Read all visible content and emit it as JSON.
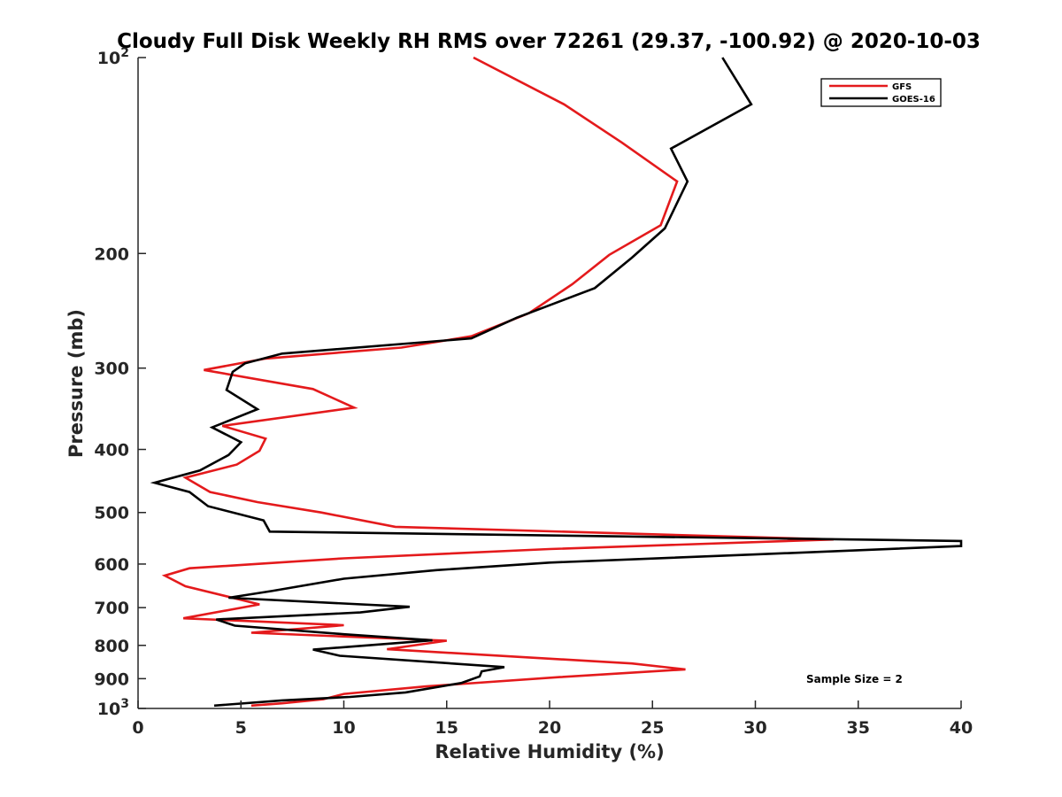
{
  "chart_data": {
    "type": "line",
    "title": "Cloudy Full Disk Weekly RH RMS over 72261 (29.37, -100.92) @ 2020-10-03",
    "xlabel": "Relative Humidity (%)",
    "ylabel": "Pressure (mb)",
    "xlim": [
      0,
      40
    ],
    "ylim": [
      100,
      1000
    ],
    "y_scale": "log",
    "y_reversed": true,
    "grid": false,
    "legend_position": "top-right",
    "x_ticks": [
      0,
      5,
      10,
      15,
      20,
      25,
      30,
      35,
      40
    ],
    "x_tick_labels": [
      "0",
      "5",
      "10",
      "15",
      "20",
      "25",
      "30",
      "35",
      "40"
    ],
    "y_ticks": [
      100,
      200,
      300,
      400,
      500,
      600,
      700,
      800,
      900,
      1000
    ],
    "y_tick_labels": [
      {
        "base": "10",
        "exp": "2"
      },
      {
        "base": "200",
        "exp": ""
      },
      {
        "base": "300",
        "exp": ""
      },
      {
        "base": "400",
        "exp": ""
      },
      {
        "base": "500",
        "exp": ""
      },
      {
        "base": "600",
        "exp": ""
      },
      {
        "base": "700",
        "exp": ""
      },
      {
        "base": "800",
        "exp": ""
      },
      {
        "base": "900",
        "exp": ""
      },
      {
        "base": "10",
        "exp": "3"
      }
    ],
    "annotation": "Sample Size = 2",
    "series": [
      {
        "name": "GFS",
        "color": "#e41a1c",
        "points": [
          [
            16.3,
            100
          ],
          [
            20.7,
            118
          ],
          [
            23.5,
            135
          ],
          [
            26.2,
            155
          ],
          [
            25.4,
            181
          ],
          [
            22.9,
            201
          ],
          [
            21.1,
            223
          ],
          [
            19.0,
            247
          ],
          [
            16.2,
            268
          ],
          [
            12.8,
            279
          ],
          [
            6.2,
            290
          ],
          [
            3.2,
            302
          ],
          [
            8.5,
            323
          ],
          [
            10.5,
            345
          ],
          [
            4.1,
            368
          ],
          [
            6.2,
            385
          ],
          [
            5.9,
            402
          ],
          [
            4.8,
            422
          ],
          [
            2.3,
            442
          ],
          [
            3.5,
            465
          ],
          [
            5.8,
            482
          ],
          [
            8.9,
            500
          ],
          [
            12.5,
            526
          ],
          [
            33.8,
            550
          ],
          [
            20.0,
            569
          ],
          [
            10.0,
            588
          ],
          [
            2.5,
            609
          ],
          [
            1.3,
            625
          ],
          [
            2.3,
            649
          ],
          [
            5.9,
            692
          ],
          [
            2.2,
            727
          ],
          [
            10.0,
            745
          ],
          [
            5.5,
            765
          ],
          [
            15.0,
            787
          ],
          [
            12.1,
            811
          ],
          [
            24.0,
            853
          ],
          [
            26.6,
            871
          ],
          [
            20.5,
            895
          ],
          [
            14.0,
            925
          ],
          [
            10.0,
            950
          ],
          [
            9.0,
            968
          ],
          [
            7.0,
            982
          ],
          [
            5.5,
            990
          ]
        ]
      },
      {
        "name": "GOES-16",
        "color": "#000000",
        "points": [
          [
            28.4,
            100
          ],
          [
            29.8,
            118
          ],
          [
            25.9,
            138
          ],
          [
            26.7,
            155
          ],
          [
            25.6,
            183
          ],
          [
            24.0,
            203
          ],
          [
            22.2,
            226
          ],
          [
            18.4,
            251
          ],
          [
            16.2,
            270
          ],
          [
            7.0,
            285
          ],
          [
            5.2,
            295
          ],
          [
            4.6,
            304
          ],
          [
            4.3,
            324
          ],
          [
            5.8,
            347
          ],
          [
            3.6,
            370
          ],
          [
            5.0,
            390
          ],
          [
            4.4,
            408
          ],
          [
            3.0,
            431
          ],
          [
            0.8,
            450
          ],
          [
            2.5,
            465
          ],
          [
            3.4,
            489
          ],
          [
            6.1,
            514
          ],
          [
            6.4,
            535
          ],
          [
            40.0,
            553
          ],
          [
            40.0,
            563
          ],
          [
            30.0,
            580
          ],
          [
            20.0,
            597
          ],
          [
            14.5,
            613
          ],
          [
            10.0,
            632
          ],
          [
            6.5,
            660
          ],
          [
            4.4,
            676
          ],
          [
            13.2,
            698
          ],
          [
            10.8,
            712
          ],
          [
            3.8,
            730
          ],
          [
            4.7,
            746
          ],
          [
            10.0,
            769
          ],
          [
            14.3,
            786
          ],
          [
            8.5,
            812
          ],
          [
            9.8,
            830
          ],
          [
            17.8,
            864
          ],
          [
            16.7,
            877
          ],
          [
            16.6,
            893
          ],
          [
            15.7,
            914
          ],
          [
            13.0,
            945
          ],
          [
            10.3,
            960
          ],
          [
            7.0,
            972
          ],
          [
            3.7,
            990
          ]
        ]
      }
    ]
  }
}
